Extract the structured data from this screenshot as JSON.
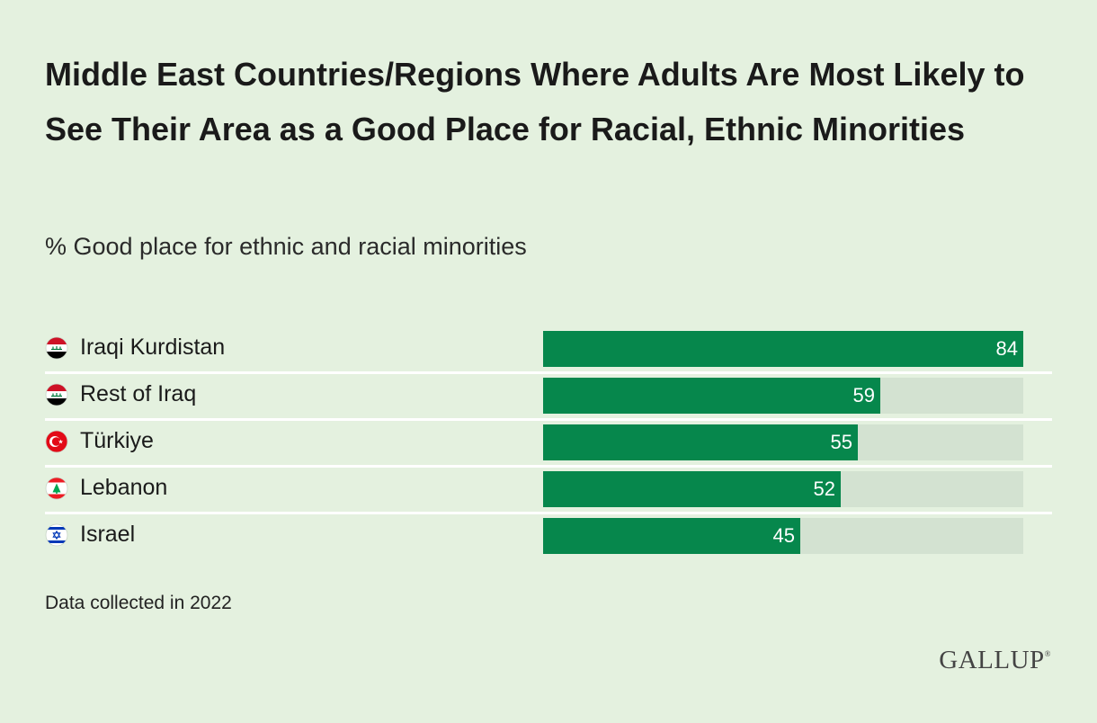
{
  "title": "Middle East Countries/Regions Where Adults Are Most Likely to See Their Area as a Good Place for Racial, Ethnic Minorities",
  "subtitle": "% Good place for ethnic and racial minorities",
  "note": "Data collected in 2022",
  "logo": "GALLUP",
  "colors": {
    "background": "#e4f1df",
    "bar": "#06874c",
    "track": "#d3e2d1"
  },
  "chart_data": {
    "type": "bar",
    "orientation": "horizontal",
    "categories": [
      "Iraqi Kurdistan",
      "Rest of Iraq",
      "Türkiye",
      "Lebanon",
      "Israel"
    ],
    "values": [
      84,
      59,
      55,
      52,
      45
    ],
    "flag_icons": [
      "iraq-flag-icon",
      "iraq-flag-icon",
      "turkiye-flag-icon",
      "lebanon-flag-icon",
      "israel-flag-icon"
    ],
    "xlim": [
      0,
      84
    ],
    "data_labels": true
  }
}
